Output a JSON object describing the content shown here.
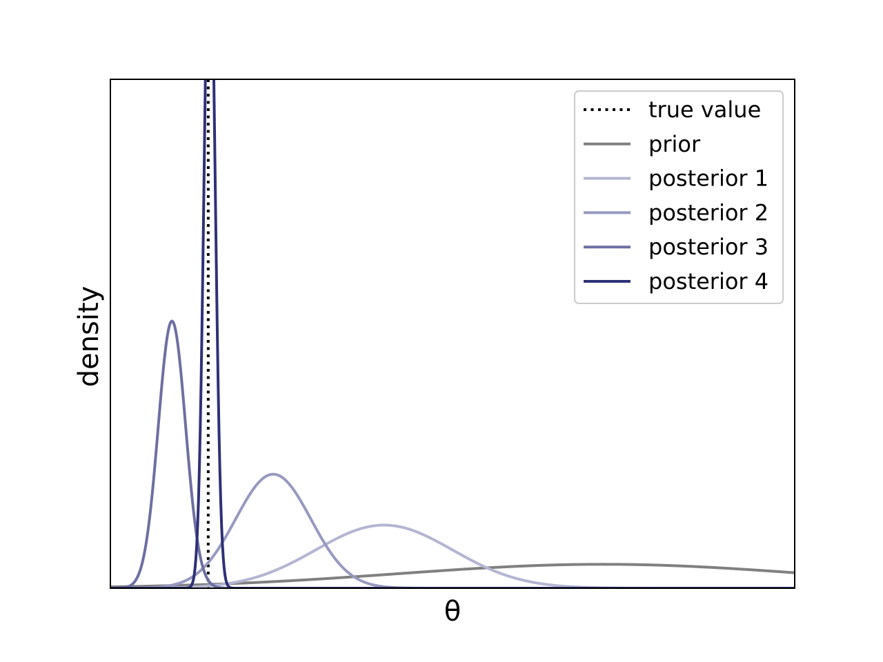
{
  "chart_data": {
    "type": "line",
    "xlabel": "θ",
    "ylabel": "density",
    "xlim": [
      0,
      1
    ],
    "ylim": [
      0,
      1
    ],
    "xticks": [],
    "yticks": [],
    "grid": false,
    "legend_position": "top-right",
    "reference_lines": [
      {
        "name": "true value",
        "x": 0.143,
        "style": "dotted",
        "color": "#000000"
      }
    ],
    "series": [
      {
        "name": "prior",
        "color": "#808080",
        "dist": "normal",
        "mean": 0.72,
        "sd": 0.3,
        "peak": 0.047
      },
      {
        "name": "posterior 1",
        "color": "#b4b5d2",
        "dist": "normal",
        "mean": 0.4,
        "sd": 0.1,
        "peak": 0.124
      },
      {
        "name": "posterior 2",
        "color": "#9899bf",
        "dist": "normal",
        "mean": 0.238,
        "sd": 0.055,
        "peak": 0.224
      },
      {
        "name": "posterior 3",
        "color": "#6e6fa2",
        "dist": "normal",
        "mean": 0.09,
        "sd": 0.02,
        "peak": 0.525
      },
      {
        "name": "posterior 4",
        "color": "#2f3178",
        "dist": "normal",
        "mean": 0.145,
        "sd": 0.008,
        "peak": 1.35
      }
    ]
  }
}
